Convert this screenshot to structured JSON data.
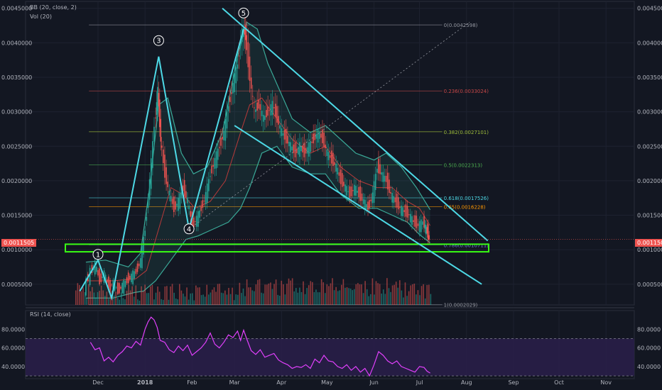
{
  "indicators": {
    "bb": "BB (20, close, 2)",
    "vol": "Vol (20)",
    "rsi": "RSI (14, close)"
  },
  "current_price": "0.0011505",
  "colors": {
    "background": "#131722",
    "grid": "#1e2230",
    "channel": "#4dd9e6",
    "bb": "#3aa897",
    "bb_mid": "#b73a3a",
    "support": "#39ff14",
    "rsi": "#e040fb",
    "rsi_band": "#2a1f4a",
    "up": "#26a69a",
    "down": "#ef5350"
  },
  "chart_data": {
    "type": "line",
    "price_axis": {
      "ylim": [
        0.0002,
        0.0046
      ],
      "ticks": [
        "0.0045000",
        "0.0040000",
        "0.0035000",
        "0.0030000",
        "0.0025000",
        "0.0020000",
        "0.0015000",
        "0.0010000",
        "0.0005000"
      ],
      "tick_values": [
        0.0045,
        0.004,
        0.0035,
        0.003,
        0.0025,
        0.002,
        0.0015,
        0.001,
        0.0005
      ]
    },
    "x_axis": {
      "labels": [
        "Dec",
        "2018",
        "Feb",
        "Mar",
        "Apr",
        "May",
        "Jun",
        "Jul",
        "Aug",
        "Sep",
        "Oct",
        "Nov"
      ],
      "days": [
        0,
        31,
        62,
        90,
        121,
        151,
        182,
        212,
        243,
        274,
        304,
        335
      ]
    },
    "price_series": [
      {
        "d": -8,
        "v": 0.00045
      },
      {
        "d": -4,
        "v": 0.00068
      },
      {
        "d": -1,
        "v": 0.00078
      },
      {
        "d": 2,
        "v": 0.00055
      },
      {
        "d": 5,
        "v": 0.00065
      },
      {
        "d": 8,
        "v": 0.00045
      },
      {
        "d": 11,
        "v": 0.00052
      },
      {
        "d": 14,
        "v": 0.0004
      },
      {
        "d": 17,
        "v": 0.00048
      },
      {
        "d": 20,
        "v": 0.00055
      },
      {
        "d": 23,
        "v": 0.00062
      },
      {
        "d": 26,
        "v": 0.00068
      },
      {
        "d": 29,
        "v": 0.00085
      },
      {
        "d": 32,
        "v": 0.0013
      },
      {
        "d": 35,
        "v": 0.002
      },
      {
        "d": 38,
        "v": 0.0028
      },
      {
        "d": 40,
        "v": 0.0033
      },
      {
        "d": 42,
        "v": 0.0026
      },
      {
        "d": 45,
        "v": 0.0021
      },
      {
        "d": 48,
        "v": 0.0018
      },
      {
        "d": 51,
        "v": 0.0016
      },
      {
        "d": 54,
        "v": 0.0017
      },
      {
        "d": 57,
        "v": 0.0019
      },
      {
        "d": 60,
        "v": 0.0017
      },
      {
        "d": 63,
        "v": 0.00135
      },
      {
        "d": 66,
        "v": 0.00145
      },
      {
        "d": 69,
        "v": 0.0016
      },
      {
        "d": 72,
        "v": 0.0018
      },
      {
        "d": 75,
        "v": 0.0021
      },
      {
        "d": 78,
        "v": 0.0023
      },
      {
        "d": 81,
        "v": 0.0025
      },
      {
        "d": 84,
        "v": 0.0027
      },
      {
        "d": 87,
        "v": 0.0031
      },
      {
        "d": 90,
        "v": 0.0034
      },
      {
        "d": 93,
        "v": 0.0037
      },
      {
        "d": 96,
        "v": 0.0042
      },
      {
        "d": 98,
        "v": 0.0041
      },
      {
        "d": 101,
        "v": 0.0035
      },
      {
        "d": 104,
        "v": 0.003
      },
      {
        "d": 107,
        "v": 0.0031
      },
      {
        "d": 110,
        "v": 0.0029
      },
      {
        "d": 113,
        "v": 0.003
      },
      {
        "d": 116,
        "v": 0.0031
      },
      {
        "d": 119,
        "v": 0.0029
      },
      {
        "d": 122,
        "v": 0.0027
      },
      {
        "d": 125,
        "v": 0.0026
      },
      {
        "d": 128,
        "v": 0.0025
      },
      {
        "d": 131,
        "v": 0.0024
      },
      {
        "d": 134,
        "v": 0.0025
      },
      {
        "d": 137,
        "v": 0.0024
      },
      {
        "d": 140,
        "v": 0.0025
      },
      {
        "d": 143,
        "v": 0.0026
      },
      {
        "d": 146,
        "v": 0.0027
      },
      {
        "d": 149,
        "v": 0.0026
      },
      {
        "d": 152,
        "v": 0.0024
      },
      {
        "d": 155,
        "v": 0.0023
      },
      {
        "d": 158,
        "v": 0.0022
      },
      {
        "d": 161,
        "v": 0.002
      },
      {
        "d": 164,
        "v": 0.0019
      },
      {
        "d": 167,
        "v": 0.0018
      },
      {
        "d": 170,
        "v": 0.0019
      },
      {
        "d": 173,
        "v": 0.0018
      },
      {
        "d": 176,
        "v": 0.0017
      },
      {
        "d": 179,
        "v": 0.0016
      },
      {
        "d": 182,
        "v": 0.0018
      },
      {
        "d": 185,
        "v": 0.0022
      },
      {
        "d": 188,
        "v": 0.0021
      },
      {
        "d": 191,
        "v": 0.002
      },
      {
        "d": 194,
        "v": 0.0018
      },
      {
        "d": 197,
        "v": 0.0017
      },
      {
        "d": 200,
        "v": 0.0016
      },
      {
        "d": 203,
        "v": 0.00155
      },
      {
        "d": 206,
        "v": 0.0015
      },
      {
        "d": 209,
        "v": 0.0014
      },
      {
        "d": 212,
        "v": 0.00135
      },
      {
        "d": 215,
        "v": 0.0014
      },
      {
        "d": 217,
        "v": 0.0013
      },
      {
        "d": 219,
        "v": 0.00115
      }
    ],
    "bb_upper": [
      {
        "d": -8,
        "v": 0.00082
      },
      {
        "d": 5,
        "v": 0.00085
      },
      {
        "d": 20,
        "v": 0.00075
      },
      {
        "d": 28,
        "v": 0.00095
      },
      {
        "d": 34,
        "v": 0.0019
      },
      {
        "d": 40,
        "v": 0.0031
      },
      {
        "d": 46,
        "v": 0.0032
      },
      {
        "d": 55,
        "v": 0.0024
      },
      {
        "d": 63,
        "v": 0.0021
      },
      {
        "d": 72,
        "v": 0.0022
      },
      {
        "d": 82,
        "v": 0.0027
      },
      {
        "d": 92,
        "v": 0.0038
      },
      {
        "d": 98,
        "v": 0.0043
      },
      {
        "d": 105,
        "v": 0.0042
      },
      {
        "d": 112,
        "v": 0.0037
      },
      {
        "d": 120,
        "v": 0.0033
      },
      {
        "d": 128,
        "v": 0.0029
      },
      {
        "d": 140,
        "v": 0.0027
      },
      {
        "d": 150,
        "v": 0.0028
      },
      {
        "d": 160,
        "v": 0.0026
      },
      {
        "d": 170,
        "v": 0.0024
      },
      {
        "d": 182,
        "v": 0.0023
      },
      {
        "d": 190,
        "v": 0.0024
      },
      {
        "d": 200,
        "v": 0.0022
      },
      {
        "d": 210,
        "v": 0.0019
      },
      {
        "d": 219,
        "v": 0.00158
      }
    ],
    "bb_lower": [
      {
        "d": -8,
        "v": 0.0003
      },
      {
        "d": 10,
        "v": 0.0003
      },
      {
        "d": 24,
        "v": 0.00038
      },
      {
        "d": 30,
        "v": 0.0004
      },
      {
        "d": 38,
        "v": 0.00055
      },
      {
        "d": 48,
        "v": 0.00085
      },
      {
        "d": 58,
        "v": 0.00115
      },
      {
        "d": 66,
        "v": 0.0012
      },
      {
        "d": 76,
        "v": 0.0013
      },
      {
        "d": 86,
        "v": 0.0014
      },
      {
        "d": 94,
        "v": 0.0016
      },
      {
        "d": 100,
        "v": 0.0019
      },
      {
        "d": 108,
        "v": 0.0024
      },
      {
        "d": 118,
        "v": 0.0025
      },
      {
        "d": 128,
        "v": 0.0022
      },
      {
        "d": 140,
        "v": 0.0021
      },
      {
        "d": 150,
        "v": 0.0021
      },
      {
        "d": 160,
        "v": 0.0018
      },
      {
        "d": 172,
        "v": 0.0016
      },
      {
        "d": 184,
        "v": 0.0016
      },
      {
        "d": 194,
        "v": 0.0015
      },
      {
        "d": 204,
        "v": 0.0014
      },
      {
        "d": 212,
        "v": 0.00122
      },
      {
        "d": 219,
        "v": 0.0011
      }
    ],
    "bb_mid": [
      {
        "d": -8,
        "v": 0.00055
      },
      {
        "d": 10,
        "v": 0.00055
      },
      {
        "d": 25,
        "v": 0.00058
      },
      {
        "d": 32,
        "v": 0.0007
      },
      {
        "d": 40,
        "v": 0.0013
      },
      {
        "d": 48,
        "v": 0.0019
      },
      {
        "d": 56,
        "v": 0.0018
      },
      {
        "d": 64,
        "v": 0.0016
      },
      {
        "d": 74,
        "v": 0.0017
      },
      {
        "d": 84,
        "v": 0.002
      },
      {
        "d": 94,
        "v": 0.0027
      },
      {
        "d": 100,
        "v": 0.0031
      },
      {
        "d": 108,
        "v": 0.0032
      },
      {
        "d": 118,
        "v": 0.0029
      },
      {
        "d": 128,
        "v": 0.0026
      },
      {
        "d": 140,
        "v": 0.0024
      },
      {
        "d": 150,
        "v": 0.0025
      },
      {
        "d": 160,
        "v": 0.0022
      },
      {
        "d": 172,
        "v": 0.002
      },
      {
        "d": 184,
        "v": 0.0019
      },
      {
        "d": 194,
        "v": 0.0019
      },
      {
        "d": 204,
        "v": 0.0017
      },
      {
        "d": 212,
        "v": 0.0016
      },
      {
        "d": 219,
        "v": 0.00135
      }
    ],
    "wave_lines": [
      {
        "d": -12,
        "v": 0.0004
      },
      {
        "d": 0,
        "v": 0.00085
      },
      {
        "d": 9,
        "v": 0.0003
      },
      {
        "d": 40,
        "v": 0.0038
      },
      {
        "d": 60,
        "v": 0.0013
      },
      {
        "d": 96,
        "v": 0.0042
      }
    ],
    "wave_labels": [
      {
        "label": "1",
        "d": 0,
        "v": 0.00085
      },
      {
        "label": "3",
        "d": 40,
        "v": 0.00395
      },
      {
        "label": "4",
        "d": 60,
        "v": 0.00122
      },
      {
        "label": "5",
        "d": 96,
        "v": 0.00435
      }
    ],
    "channel_upper": [
      {
        "d": 82,
        "v": 0.0045
      },
      {
        "d": 257,
        "v": 0.00113
      }
    ],
    "channel_lower": [
      {
        "d": 90,
        "v": 0.0028
      },
      {
        "d": 253,
        "v": 0.0005
      }
    ],
    "trend_dotted": [
      {
        "d": 60,
        "v": 0.0013
      },
      {
        "d": 245,
        "v": 0.0043
      }
    ],
    "support_zone": [
      0.00097,
      0.00108
    ],
    "fib_levels": [
      {
        "label": "0(0.0042598)",
        "value": 0.0042598,
        "color": "#9598a1"
      },
      {
        "label": "0.236(0.0033024)",
        "value": 0.0033024,
        "color": "#c74747"
      },
      {
        "label": "0.382(0.0027101)",
        "value": 0.0027101,
        "color": "#9ebd3a"
      },
      {
        "label": "0.5(0.0022313)",
        "value": 0.0022313,
        "color": "#4caf50"
      },
      {
        "label": "0.618(0.0017526)",
        "value": 0.0017526,
        "color": "#4dd9e6"
      },
      {
        "label": "0.65(0.0016228)",
        "value": 0.0016228,
        "color": "#ff9800"
      },
      {
        "label": "0.786(0.0010711)",
        "value": 0.0010711,
        "color": "#6c7bd6"
      },
      {
        "label": "1(0.0002029)",
        "value": 0.0002029,
        "color": "#9598a1"
      }
    ],
    "rsi": {
      "ylim": [
        27,
        100
      ],
      "ticks": [
        "80.0000",
        "60.0000",
        "40.0000"
      ],
      "tick_values": [
        80,
        60,
        40
      ],
      "band": [
        30,
        70
      ],
      "values": [
        {
          "d": -5,
          "v": 66
        },
        {
          "d": -2,
          "v": 58
        },
        {
          "d": 1,
          "v": 60
        },
        {
          "d": 4,
          "v": 46
        },
        {
          "d": 7,
          "v": 50
        },
        {
          "d": 10,
          "v": 45
        },
        {
          "d": 13,
          "v": 52
        },
        {
          "d": 16,
          "v": 56
        },
        {
          "d": 19,
          "v": 62
        },
        {
          "d": 22,
          "v": 60
        },
        {
          "d": 25,
          "v": 67
        },
        {
          "d": 28,
          "v": 63
        },
        {
          "d": 31,
          "v": 80
        },
        {
          "d": 33,
          "v": 88
        },
        {
          "d": 35,
          "v": 93
        },
        {
          "d": 37,
          "v": 90
        },
        {
          "d": 39,
          "v": 82
        },
        {
          "d": 41,
          "v": 68
        },
        {
          "d": 44,
          "v": 66
        },
        {
          "d": 47,
          "v": 58
        },
        {
          "d": 50,
          "v": 55
        },
        {
          "d": 53,
          "v": 62
        },
        {
          "d": 56,
          "v": 57
        },
        {
          "d": 59,
          "v": 63
        },
        {
          "d": 62,
          "v": 52
        },
        {
          "d": 65,
          "v": 56
        },
        {
          "d": 68,
          "v": 60
        },
        {
          "d": 71,
          "v": 66
        },
        {
          "d": 74,
          "v": 76
        },
        {
          "d": 77,
          "v": 64
        },
        {
          "d": 80,
          "v": 60
        },
        {
          "d": 83,
          "v": 66
        },
        {
          "d": 86,
          "v": 74
        },
        {
          "d": 89,
          "v": 71
        },
        {
          "d": 92,
          "v": 78
        },
        {
          "d": 94,
          "v": 68
        },
        {
          "d": 96,
          "v": 79
        },
        {
          "d": 98,
          "v": 70
        },
        {
          "d": 101,
          "v": 57
        },
        {
          "d": 104,
          "v": 53
        },
        {
          "d": 107,
          "v": 58
        },
        {
          "d": 110,
          "v": 50
        },
        {
          "d": 113,
          "v": 52
        },
        {
          "d": 116,
          "v": 54
        },
        {
          "d": 119,
          "v": 47
        },
        {
          "d": 122,
          "v": 44
        },
        {
          "d": 125,
          "v": 42
        },
        {
          "d": 128,
          "v": 38
        },
        {
          "d": 131,
          "v": 40
        },
        {
          "d": 134,
          "v": 39
        },
        {
          "d": 137,
          "v": 42
        },
        {
          "d": 140,
          "v": 38
        },
        {
          "d": 143,
          "v": 48
        },
        {
          "d": 146,
          "v": 44
        },
        {
          "d": 149,
          "v": 52
        },
        {
          "d": 152,
          "v": 46
        },
        {
          "d": 155,
          "v": 45
        },
        {
          "d": 158,
          "v": 40
        },
        {
          "d": 161,
          "v": 38
        },
        {
          "d": 164,
          "v": 42
        },
        {
          "d": 167,
          "v": 36
        },
        {
          "d": 170,
          "v": 40
        },
        {
          "d": 173,
          "v": 34
        },
        {
          "d": 176,
          "v": 38
        },
        {
          "d": 179,
          "v": 30
        },
        {
          "d": 182,
          "v": 42
        },
        {
          "d": 185,
          "v": 56
        },
        {
          "d": 188,
          "v": 52
        },
        {
          "d": 191,
          "v": 46
        },
        {
          "d": 194,
          "v": 43
        },
        {
          "d": 197,
          "v": 46
        },
        {
          "d": 200,
          "v": 40
        },
        {
          "d": 203,
          "v": 38
        },
        {
          "d": 206,
          "v": 36
        },
        {
          "d": 209,
          "v": 34
        },
        {
          "d": 212,
          "v": 40
        },
        {
          "d": 215,
          "v": 39
        },
        {
          "d": 217,
          "v": 35
        },
        {
          "d": 219,
          "v": 33
        }
      ]
    }
  }
}
